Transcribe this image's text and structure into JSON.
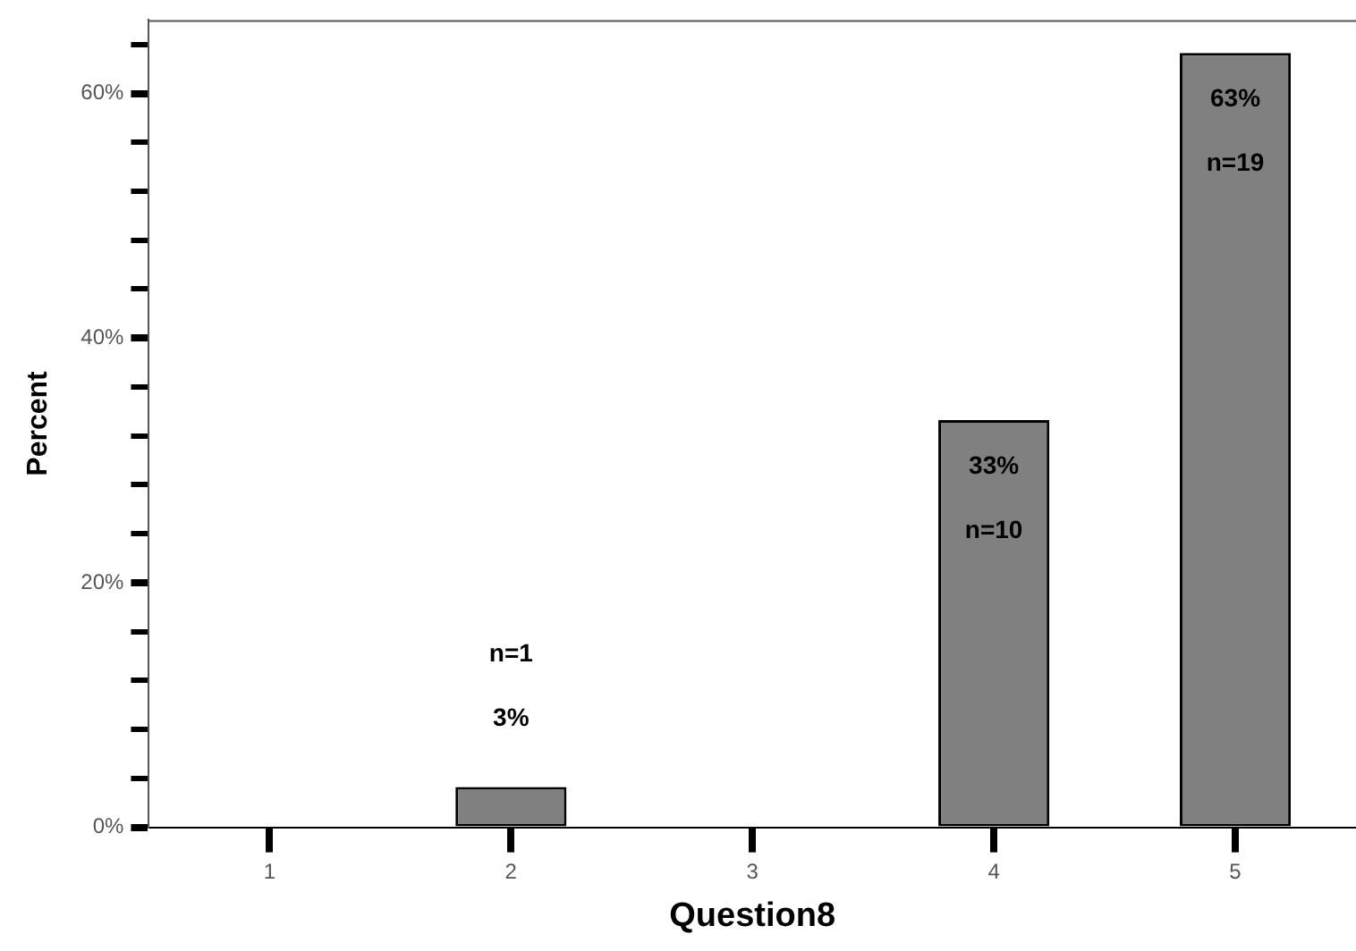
{
  "chart_data": {
    "type": "bar",
    "xlabel": "Question8",
    "ylabel": "Percent",
    "categories": [
      "1",
      "2",
      "3",
      "4",
      "5"
    ],
    "values": [
      null,
      3.3,
      null,
      33.3,
      63.3
    ],
    "value_labels": [
      null,
      "3%",
      null,
      "33%",
      "63%"
    ],
    "annotations": [
      "n=1",
      "n=10",
      "n=19"
    ],
    "color": "#808080",
    "ylim": [
      0,
      66
    ],
    "yticks": [
      {
        "value": 0,
        "label": "0%"
      },
      {
        "value": 4,
        "label": null
      },
      {
        "value": 8,
        "label": null
      },
      {
        "value": 12,
        "label": null
      },
      {
        "value": 16,
        "label": null
      },
      {
        "value": 20,
        "label": "20%"
      },
      {
        "value": 24,
        "label": null
      },
      {
        "value": 28,
        "label": null
      },
      {
        "value": 32,
        "label": null
      },
      {
        "value": 36,
        "label": null
      },
      {
        "value": 40,
        "label": "40%"
      },
      {
        "value": 44,
        "label": null
      },
      {
        "value": 48,
        "label": null
      },
      {
        "value": 52,
        "label": null
      },
      {
        "value": 56,
        "label": null
      },
      {
        "value": 60,
        "label": "60%"
      },
      {
        "value": 64,
        "label": null
      }
    ]
  }
}
